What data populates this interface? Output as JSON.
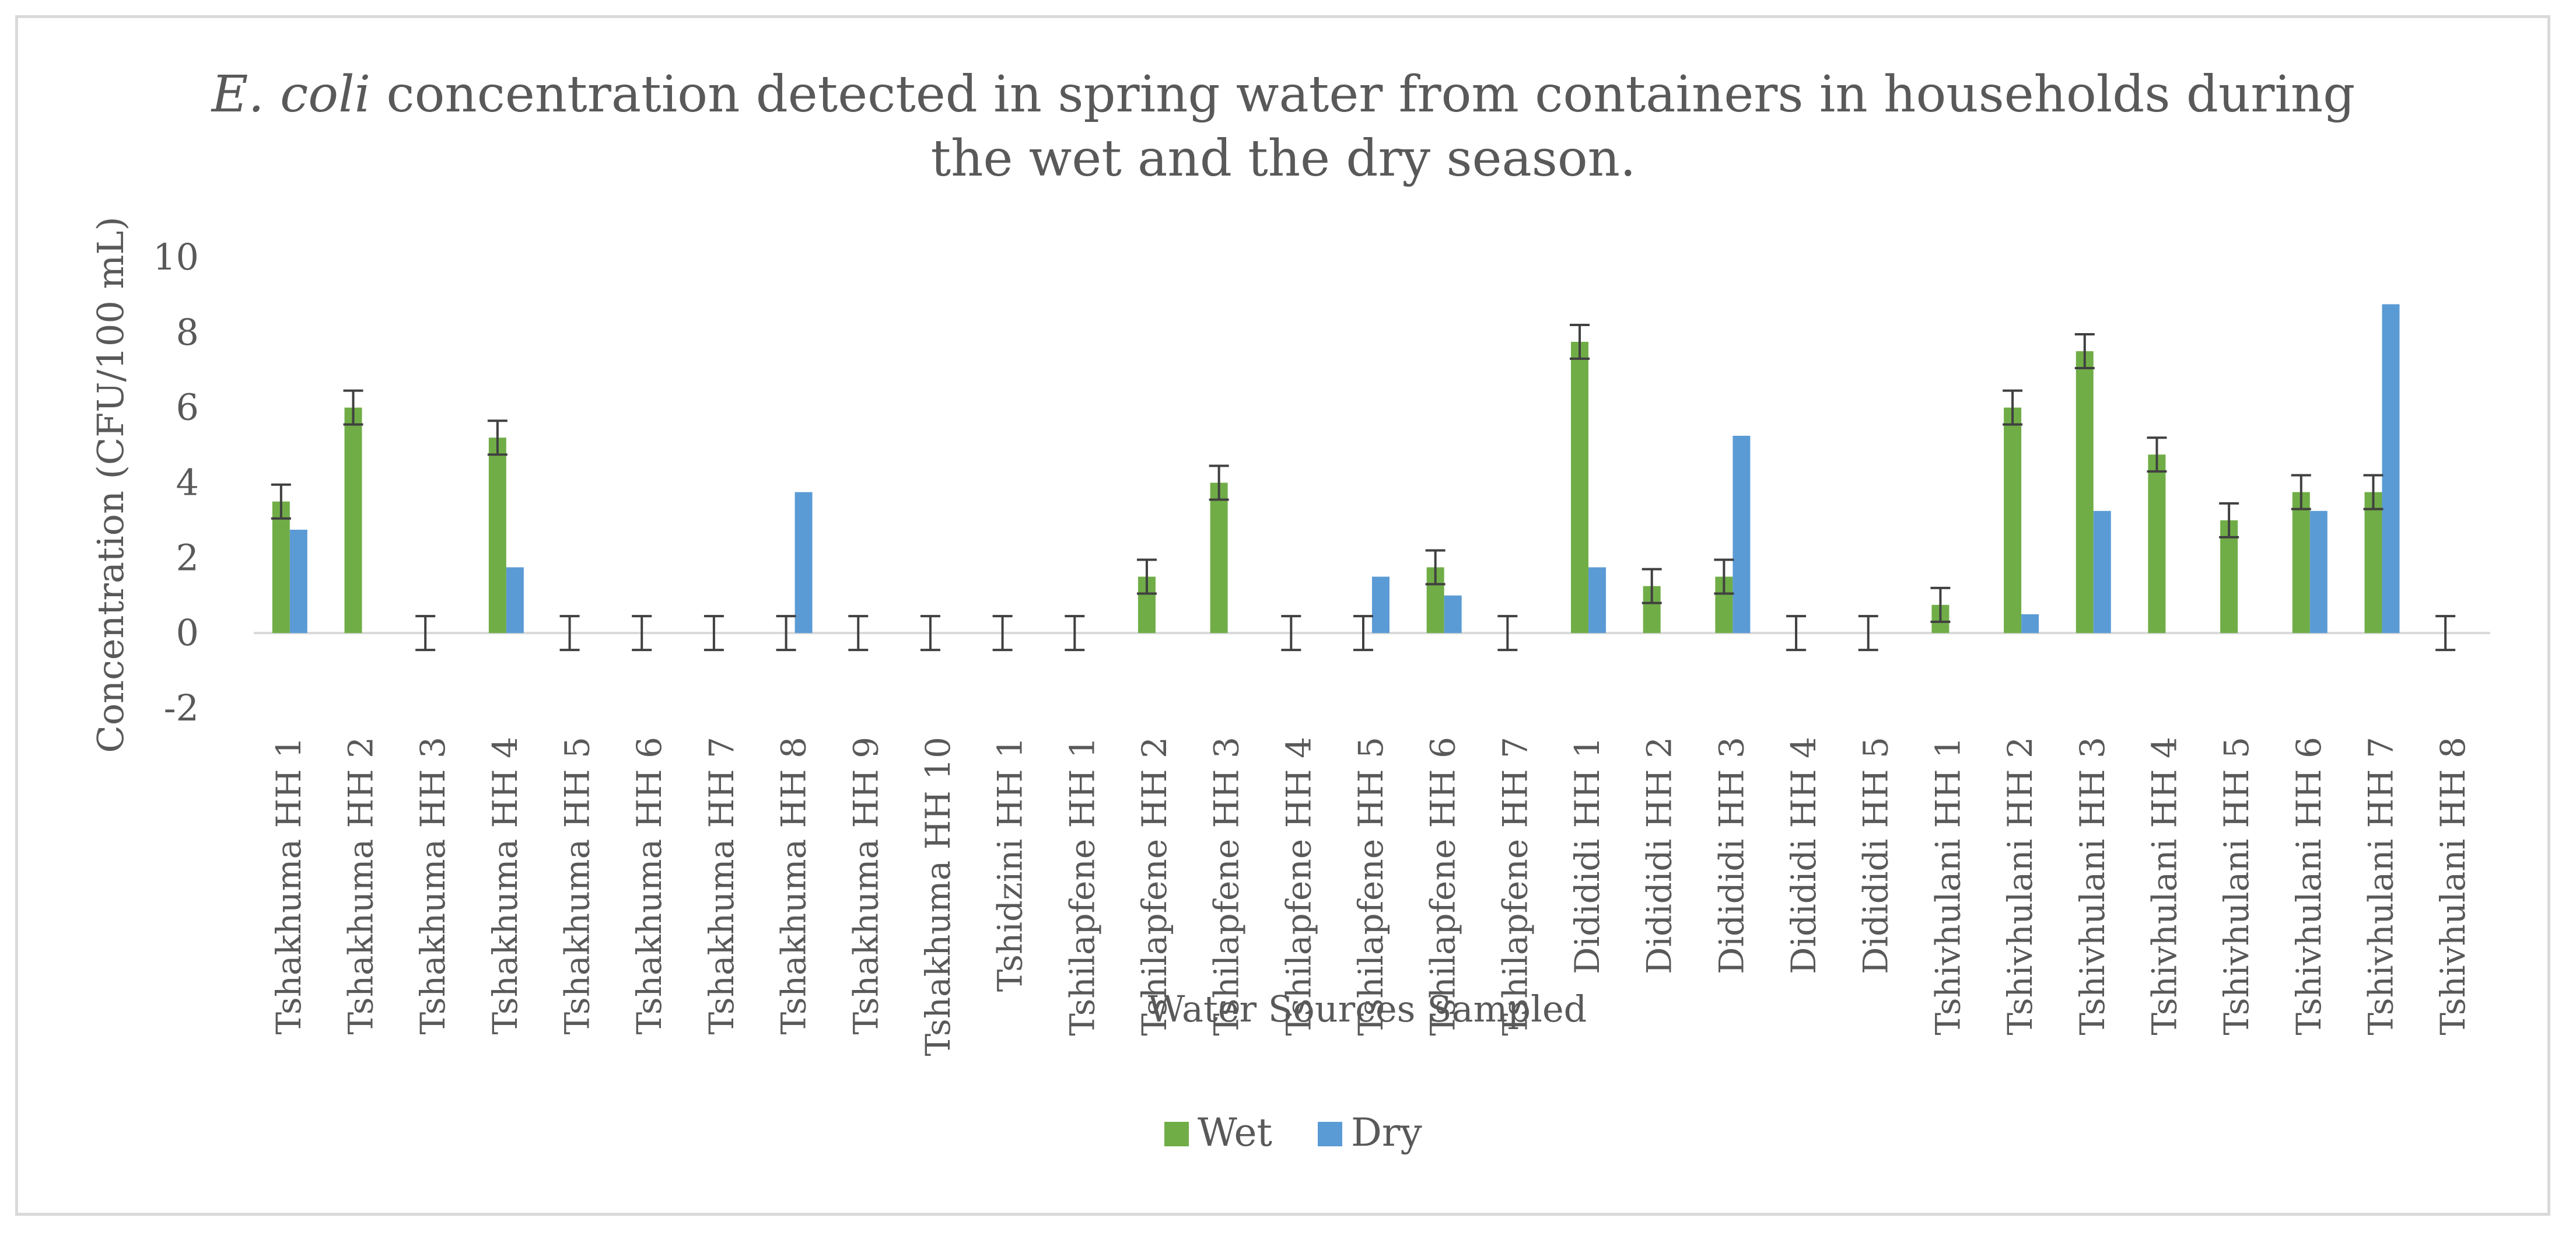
{
  "chart_data": {
    "type": "bar",
    "title_italic": "E. coli",
    "title_rest_line1": " concentration detected in spring water from containers in households during",
    "title_line2": "the wet and the dry season.",
    "xlabel": "Water Sources Sampled",
    "ylabel": "Concentration (CFU/100 mL)",
    "ylim": [
      -2,
      10
    ],
    "yticks": [
      10,
      8,
      6,
      4,
      2,
      0,
      -2
    ],
    "categories": [
      "Tshakhuma HH 1",
      "Tshakhuma HH 2",
      "Tshakhuma HH 3",
      "Tshakhuma HH 4",
      "Tshakhuma HH 5",
      "Tshakhuma HH 6",
      "Tshakhuma HH 7",
      "Tshakhuma HH 8",
      "Tshakhuma HH 9",
      "Tshakhuma HH 10",
      "Tshidzini HH 1",
      "Tshilapfene HH  1",
      "Tshilapfene HH  2",
      "Tshilapfene HH  3",
      "Tshilapfene HH  4",
      "Tshilapfene HH  5",
      "Tshilapfene HH  6",
      "Tshilapfene HH  7",
      "Didididi HH 1",
      "Didididi HH 2",
      "Didididi HH 3",
      "Didididi HH 4",
      "Didididi HH 5",
      "Tshivhulani HH 1",
      "Tshivhulani HH 2",
      "Tshivhulani HH 3",
      "Tshivhulani HH 4",
      "Tshivhulani HH 5",
      "Tshivhulani HH 6",
      "Tshivhulani HH 7",
      "Tshivhulani HH 8"
    ],
    "series": [
      {
        "name": "Wet",
        "color": "#70ad47",
        "values": [
          3.5,
          6.0,
          0,
          5.2,
          0,
          0,
          0,
          0,
          0,
          0,
          0,
          0,
          1.5,
          4.0,
          0,
          0,
          1.75,
          0,
          7.75,
          1.25,
          1.5,
          0,
          0,
          0.75,
          6.0,
          7.5,
          4.75,
          3.0,
          3.75,
          3.75,
          0
        ],
        "errors": [
          0.45,
          0.45,
          0.45,
          0.45,
          0.45,
          0.45,
          0.45,
          0.45,
          0.45,
          0.45,
          0.45,
          0.45,
          0.45,
          0.45,
          0.45,
          0.45,
          0.45,
          0.45,
          0.45,
          0.45,
          0.45,
          0.45,
          0.45,
          0.45,
          0.45,
          0.45,
          0.45,
          0.45,
          0.45,
          0.45,
          0.45
        ]
      },
      {
        "name": "Dry",
        "color": "#5b9bd5",
        "values": [
          2.75,
          0,
          0,
          1.75,
          0,
          0,
          0,
          3.75,
          0,
          0,
          0,
          0,
          0,
          0,
          0,
          1.5,
          1.0,
          0,
          1.75,
          0,
          5.25,
          0,
          0,
          0,
          0.5,
          3.25,
          0,
          0,
          3.25,
          8.75,
          0
        ]
      }
    ],
    "legend_position": "bottom",
    "grid": false
  }
}
